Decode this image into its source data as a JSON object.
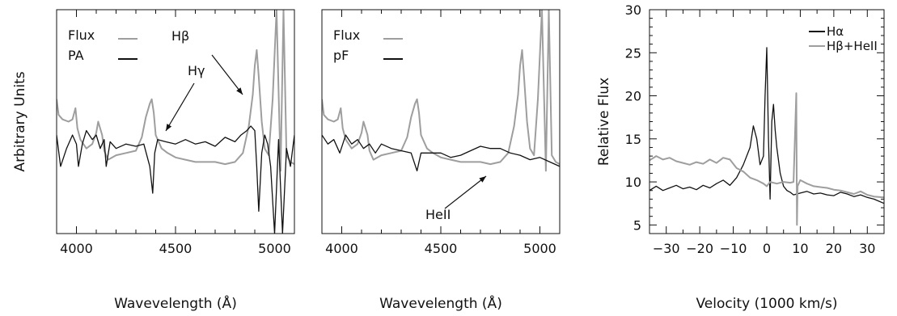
{
  "chart_data": [
    {
      "type": "line",
      "panel": "left",
      "xlabel": "Wavevelength (Å)",
      "ylabel": "Arbitrary Units",
      "xlim": [
        3900,
        5100
      ],
      "ylim": [
        0,
        1
      ],
      "xticks": [
        "4000",
        "4500",
        "5000"
      ],
      "legend_placement": "top-left",
      "series": [
        {
          "name": "Flux",
          "color": "#9e9e9e",
          "x": [
            3900,
            3910,
            3930,
            3960,
            3980,
            3995,
            4005,
            4020,
            4050,
            4080,
            4100,
            4110,
            4130,
            4140,
            4160,
            4200,
            4250,
            4300,
            4330,
            4350,
            4370,
            4380,
            4390,
            4400,
            4430,
            4460,
            4500,
            4550,
            4600,
            4650,
            4700,
            4750,
            4800,
            4840,
            4870,
            4890,
            4900,
            4910,
            4920,
            4935,
            4950,
            4970,
            4990,
            5010,
            5030,
            5045,
            5060,
            5080,
            5100
          ],
          "y": [
            0.6,
            0.53,
            0.51,
            0.5,
            0.51,
            0.56,
            0.47,
            0.42,
            0.38,
            0.4,
            0.45,
            0.5,
            0.44,
            0.37,
            0.33,
            0.35,
            0.36,
            0.37,
            0.43,
            0.52,
            0.58,
            0.6,
            0.54,
            0.44,
            0.38,
            0.36,
            0.34,
            0.33,
            0.32,
            0.32,
            0.32,
            0.31,
            0.32,
            0.36,
            0.48,
            0.62,
            0.75,
            0.82,
            0.7,
            0.5,
            0.38,
            0.35,
            0.6,
            1.0,
            0.28,
            1.0,
            0.35,
            0.32,
            0.31
          ]
        },
        {
          "name": "PA",
          "color": "#111111",
          "x": [
            3900,
            3920,
            3950,
            3980,
            4000,
            4010,
            4030,
            4050,
            4080,
            4100,
            4120,
            4140,
            4150,
            4170,
            4200,
            4250,
            4300,
            4340,
            4370,
            4385,
            4395,
            4410,
            4450,
            4500,
            4550,
            4600,
            4650,
            4700,
            4750,
            4800,
            4830,
            4860,
            4880,
            4900,
            4910,
            4920,
            4935,
            4950,
            4965,
            4980,
            5000,
            5020,
            5040,
            5060,
            5080,
            5100
          ],
          "y": [
            0.44,
            0.3,
            0.38,
            0.44,
            0.4,
            0.3,
            0.4,
            0.46,
            0.42,
            0.44,
            0.38,
            0.42,
            0.3,
            0.41,
            0.38,
            0.4,
            0.39,
            0.4,
            0.3,
            0.18,
            0.36,
            0.42,
            0.41,
            0.4,
            0.42,
            0.4,
            0.41,
            0.39,
            0.43,
            0.41,
            0.44,
            0.46,
            0.48,
            0.46,
            0.3,
            0.1,
            0.36,
            0.44,
            0.4,
            0.3,
            0.0,
            0.42,
            0.0,
            0.38,
            0.3,
            0.44
          ]
        }
      ],
      "annotations": [
        "Hβ",
        "Hγ"
      ]
    },
    {
      "type": "line",
      "panel": "middle",
      "xlabel": "Wavevelength (Å)",
      "ylabel": "",
      "xlim": [
        3900,
        5100
      ],
      "ylim": [
        0,
        1
      ],
      "xticks": [
        "4000",
        "4500",
        "5000"
      ],
      "legend_placement": "top-left",
      "series": [
        {
          "name": "Flux",
          "color": "#9e9e9e",
          "x": [
            3900,
            3910,
            3930,
            3960,
            3980,
            3995,
            4005,
            4020,
            4050,
            4080,
            4100,
            4110,
            4130,
            4140,
            4160,
            4200,
            4250,
            4300,
            4330,
            4350,
            4370,
            4380,
            4390,
            4400,
            4430,
            4460,
            4500,
            4550,
            4600,
            4650,
            4700,
            4750,
            4800,
            4840,
            4870,
            4890,
            4900,
            4910,
            4920,
            4935,
            4950,
            4970,
            4990,
            5010,
            5030,
            5045,
            5060,
            5080,
            5100
          ],
          "y": [
            0.6,
            0.53,
            0.51,
            0.5,
            0.51,
            0.56,
            0.47,
            0.42,
            0.38,
            0.4,
            0.45,
            0.5,
            0.44,
            0.37,
            0.33,
            0.35,
            0.36,
            0.37,
            0.43,
            0.52,
            0.58,
            0.6,
            0.54,
            0.44,
            0.38,
            0.36,
            0.34,
            0.33,
            0.32,
            0.32,
            0.32,
            0.31,
            0.32,
            0.36,
            0.48,
            0.62,
            0.75,
            0.82,
            0.7,
            0.5,
            0.38,
            0.35,
            0.6,
            1.0,
            0.28,
            1.0,
            0.35,
            0.32,
            0.31
          ]
        },
        {
          "name": "pF",
          "color": "#111111",
          "x": [
            3900,
            3930,
            3960,
            3990,
            4020,
            4050,
            4080,
            4110,
            4140,
            4170,
            4200,
            4250,
            4300,
            4350,
            4380,
            4400,
            4450,
            4500,
            4550,
            4600,
            4650,
            4700,
            4750,
            4800,
            4850,
            4900,
            4950,
            5000,
            5050,
            5100
          ],
          "y": [
            0.44,
            0.4,
            0.42,
            0.36,
            0.44,
            0.4,
            0.42,
            0.38,
            0.4,
            0.36,
            0.4,
            0.38,
            0.37,
            0.36,
            0.28,
            0.36,
            0.36,
            0.36,
            0.34,
            0.35,
            0.37,
            0.39,
            0.38,
            0.38,
            0.36,
            0.35,
            0.33,
            0.34,
            0.32,
            0.3
          ]
        }
      ],
      "annotations": [
        "HeII"
      ]
    },
    {
      "type": "line",
      "panel": "right",
      "xlabel": "Velocity (1000 km/s)",
      "ylabel": "Relative Flux",
      "xlim": [
        -35,
        35
      ],
      "ylim": [
        4,
        30
      ],
      "xticks": [
        "−30",
        "−20",
        "−10",
        "0",
        "10",
        "20",
        "30"
      ],
      "yticks": [
        "5",
        "10",
        "15",
        "20",
        "25",
        "30"
      ],
      "legend_placement": "top-right",
      "series": [
        {
          "name": "Hα",
          "color": "#111111",
          "x": [
            -35,
            -33,
            -31,
            -29,
            -27,
            -25,
            -23,
            -21,
            -19,
            -17,
            -15,
            -13,
            -11,
            -9,
            -7,
            -5,
            -4,
            -3,
            -2,
            -1,
            -0.5,
            0,
            0.5,
            1,
            1.5,
            2,
            2.5,
            3,
            4,
            5,
            6,
            7,
            8,
            9,
            10,
            12,
            14,
            16,
            18,
            20,
            22,
            24,
            26,
            28,
            30,
            32,
            35
          ],
          "y": [
            9,
            9.5,
            9,
            9.3,
            9.6,
            9.2,
            9.4,
            9.1,
            9.6,
            9.3,
            9.8,
            10.2,
            9.6,
            10.5,
            12,
            14,
            16.5,
            15,
            12,
            13,
            20,
            25.6,
            15,
            8,
            17,
            19,
            16,
            14,
            11,
            9.5,
            9,
            8.8,
            8.5,
            8.6,
            8.7,
            8.9,
            8.6,
            8.7,
            8.5,
            8.4,
            8.8,
            8.6,
            8.3,
            8.5,
            8.2,
            8.0,
            7.5
          ]
        },
        {
          "name": "Hβ+HeII",
          "color": "#9e9e9e",
          "x": [
            -35,
            -33,
            -31,
            -29,
            -27,
            -25,
            -23,
            -21,
            -19,
            -17,
            -15,
            -13,
            -11,
            -9,
            -7,
            -5,
            -3,
            -1,
            0,
            1,
            3,
            5,
            7,
            8,
            8.8,
            9,
            9.2,
            10,
            12,
            14,
            16,
            18,
            20,
            22,
            24,
            26,
            28,
            30,
            32,
            35
          ],
          "y": [
            12.5,
            13,
            12.6,
            12.8,
            12.4,
            12.2,
            12.0,
            12.3,
            12.1,
            12.6,
            12.2,
            12.8,
            12.6,
            11.6,
            11.2,
            10.5,
            10.2,
            9.8,
            9.5,
            10,
            9.8,
            10.0,
            9.9,
            10.0,
            20.3,
            5.0,
            9.5,
            10.2,
            9.8,
            9.5,
            9.4,
            9.3,
            9.1,
            9.0,
            8.8,
            8.6,
            8.9,
            8.5,
            8.3,
            8.2
          ]
        }
      ]
    }
  ]
}
